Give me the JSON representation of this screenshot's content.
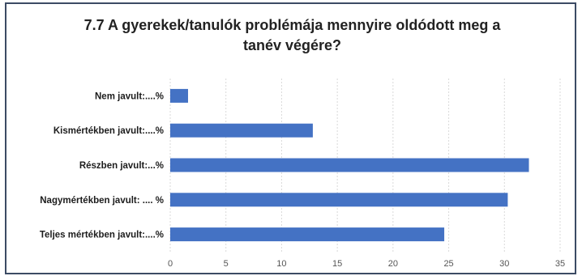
{
  "chart_data": {
    "type": "bar",
    "orientation": "horizontal",
    "title_line1": "7.7  A gyerekek/tanulók problémája mennyire oldódott meg a",
    "title_line2": "tanév végére?",
    "categories": [
      "Nem javult:....%",
      "Kismértékben javult:....%",
      "Részben javult:...%",
      "Nagymértékben javult: .... %",
      "Teljes mértékben javult:....%"
    ],
    "values": [
      1.6,
      12.8,
      32.2,
      30.3,
      24.6
    ],
    "xticks": [
      "0",
      "5",
      "10",
      "15",
      "20",
      "25",
      "30",
      "35"
    ],
    "xlim": [
      0,
      35
    ],
    "grid": "vertical dashed",
    "bar_color": "#4472c4"
  }
}
